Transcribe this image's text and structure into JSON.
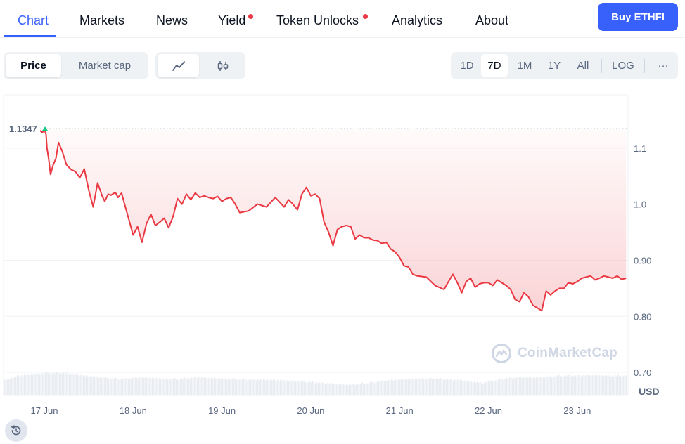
{
  "tabs": [
    {
      "label": "Chart",
      "active": true
    },
    {
      "label": "Markets"
    },
    {
      "label": "News"
    },
    {
      "label": "Yield",
      "dot": true
    },
    {
      "label": "Token Unlocks",
      "dot": true
    },
    {
      "label": "Analytics"
    },
    {
      "label": "About"
    }
  ],
  "buy_button": "Buy ETHFI",
  "metric_toggle": {
    "options": [
      "Price",
      "Market cap"
    ],
    "selected": "Price"
  },
  "chart_style_toggle": {
    "options": [
      "line-chart-icon",
      "candlestick-icon"
    ],
    "selected": "line-chart-icon"
  },
  "range_toggle": {
    "options": [
      "1D",
      "7D",
      "1M",
      "1Y",
      "All"
    ],
    "selected": "7D",
    "scale_label": "LOG",
    "more_label": "···"
  },
  "watermark": "CoinMarketCap",
  "currency_label": "USD",
  "colors": {
    "accent": "#3861fb",
    "line": "#ea3943",
    "up": "#16c784",
    "axis_text": "#58667e"
  },
  "chart_data": {
    "type": "line",
    "title": "",
    "xlabel": "",
    "ylabel": "",
    "x_ticks": [
      "17 Jun",
      "18 Jun",
      "19 Jun",
      "20 Jun",
      "21 Jun",
      "22 Jun",
      "23 Jun"
    ],
    "y_ticks": [
      "0.70",
      "0.80",
      "0.90",
      "1.0",
      "1.1"
    ],
    "ylim": [
      0.66,
      1.195
    ],
    "open_price_label": "1.1347",
    "open_price": 1.1347,
    "grid": true,
    "x_days": [
      16.95,
      16.98,
      17.0,
      17.02,
      17.03,
      17.05,
      17.07,
      17.1,
      17.13,
      17.16,
      17.2,
      17.25,
      17.3,
      17.35,
      17.4,
      17.45,
      17.5,
      17.55,
      17.6,
      17.65,
      17.68,
      17.72,
      17.75,
      17.8,
      17.83,
      17.87,
      17.9,
      17.93,
      18.0,
      18.05,
      18.1,
      18.15,
      18.2,
      18.25,
      18.3,
      18.35,
      18.4,
      18.45,
      18.5,
      18.55,
      18.6,
      18.65,
      18.7,
      18.75,
      18.8,
      18.85,
      18.9,
      18.95,
      19.0,
      19.05,
      19.1,
      19.15,
      19.2,
      19.3,
      19.4,
      19.5,
      19.6,
      19.7,
      19.75,
      19.8,
      19.85,
      19.9,
      19.95,
      20.0,
      20.05,
      20.1,
      20.15,
      20.2,
      20.25,
      20.3,
      20.35,
      20.4,
      20.45,
      20.5,
      20.55,
      20.6,
      20.65,
      20.7,
      20.75,
      20.8,
      20.85,
      20.9,
      20.95,
      21.0,
      21.05,
      21.1,
      21.15,
      21.2,
      21.3,
      21.4,
      21.5,
      21.55,
      21.6,
      21.65,
      21.7,
      21.75,
      21.8,
      21.85,
      21.9,
      21.95,
      22.0,
      22.05,
      22.1,
      22.15,
      22.2,
      22.25,
      22.3,
      22.35,
      22.4,
      22.45,
      22.5,
      22.55,
      22.6,
      22.65,
      22.7,
      22.75,
      22.8,
      22.85,
      22.9,
      22.95,
      23.0,
      23.05,
      23.1,
      23.15,
      23.2,
      23.25,
      23.3,
      23.35,
      23.4,
      23.45,
      23.5,
      23.55
    ],
    "y_values": [
      1.131,
      1.128,
      1.134,
      1.124,
      1.1,
      1.08,
      1.053,
      1.07,
      1.081,
      1.11,
      1.095,
      1.07,
      1.062,
      1.058,
      1.047,
      1.063,
      1.025,
      0.995,
      1.038,
      1.015,
      1.005,
      1.018,
      1.016,
      1.021,
      1.012,
      1.02,
      1.002,
      0.985,
      0.945,
      0.96,
      0.932,
      0.965,
      0.982,
      0.962,
      0.968,
      0.975,
      0.958,
      0.978,
      1.01,
      1.0,
      1.018,
      1.008,
      1.02,
      1.012,
      1.015,
      1.012,
      1.01,
      1.014,
      1.005,
      1.01,
      1.012,
      1.0,
      0.985,
      0.988,
      1.0,
      0.995,
      1.012,
      0.995,
      1.008,
      1.0,
      0.99,
      1.018,
      1.03,
      1.015,
      1.018,
      1.01,
      0.968,
      0.95,
      0.926,
      0.955,
      0.96,
      0.962,
      0.96,
      0.938,
      0.945,
      0.94,
      0.94,
      0.936,
      0.935,
      0.93,
      0.932,
      0.92,
      0.915,
      0.905,
      0.89,
      0.888,
      0.875,
      0.872,
      0.87,
      0.855,
      0.848,
      0.862,
      0.875,
      0.86,
      0.842,
      0.862,
      0.868,
      0.852,
      0.858,
      0.86,
      0.86,
      0.855,
      0.865,
      0.86,
      0.855,
      0.848,
      0.83,
      0.826,
      0.842,
      0.835,
      0.82,
      0.815,
      0.81,
      0.845,
      0.838,
      0.845,
      0.85,
      0.85,
      0.86,
      0.858,
      0.862,
      0.868,
      0.87,
      0.872,
      0.865,
      0.868,
      0.872,
      0.87,
      0.868,
      0.872,
      0.866,
      0.868
    ],
    "volume_x_days": [
      16.95,
      17.1,
      17.4,
      17.6,
      17.8,
      18.0,
      18.2,
      18.4,
      18.6,
      18.8,
      19.0,
      19.2,
      19.4,
      19.6,
      19.8,
      20.0,
      20.2,
      20.4,
      20.6,
      20.8,
      21.0,
      21.2,
      21.4,
      21.6,
      21.8,
      22.0,
      22.2,
      22.4,
      22.6,
      22.8,
      23.0,
      23.2,
      23.4,
      23.55
    ],
    "volume_values": [
      0.45,
      0.6,
      0.7,
      0.68,
      0.6,
      0.55,
      0.5,
      0.55,
      0.52,
      0.5,
      0.55,
      0.52,
      0.5,
      0.48,
      0.47,
      0.45,
      0.4,
      0.35,
      0.32,
      0.38,
      0.45,
      0.5,
      0.52,
      0.5,
      0.45,
      0.38,
      0.5,
      0.55,
      0.55,
      0.6,
      0.6,
      0.62,
      0.6,
      0.62
    ]
  }
}
